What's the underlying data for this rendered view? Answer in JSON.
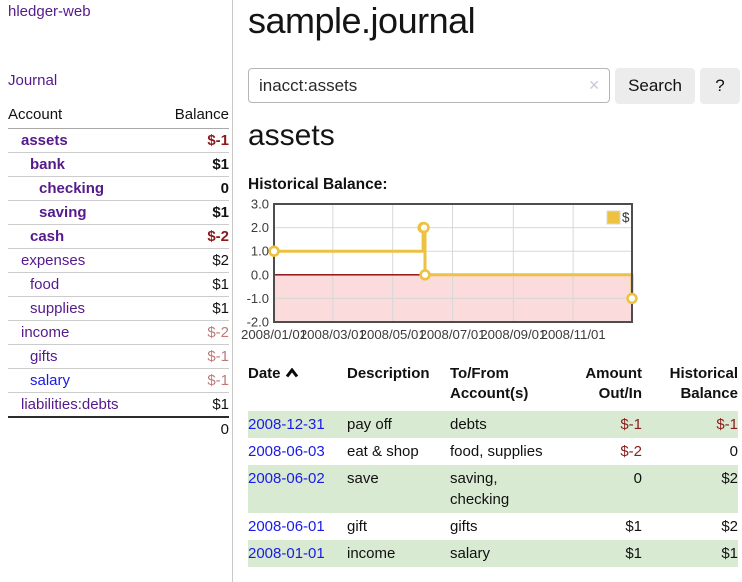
{
  "app": {
    "title": "hledger-web"
  },
  "nav": {
    "journal": "Journal"
  },
  "sidebar": {
    "columns": {
      "account": "Account",
      "balance": "Balance"
    },
    "accounts": [
      {
        "name": "assets",
        "balance": "$-1",
        "depth": 1,
        "bold": true,
        "balance_style": "neg-strong",
        "link": "visited"
      },
      {
        "name": "bank",
        "balance": "$1",
        "depth": 2,
        "bold": true,
        "balance_style": "pos",
        "link": "visited"
      },
      {
        "name": "checking",
        "balance": "0",
        "depth": 3,
        "bold": true,
        "balance_style": "pos",
        "link": "visited"
      },
      {
        "name": "saving",
        "balance": "$1",
        "depth": 3,
        "bold": true,
        "balance_style": "pos",
        "link": "visited"
      },
      {
        "name": "cash",
        "balance": "$-2",
        "depth": 2,
        "bold": true,
        "balance_style": "neg-strong",
        "link": "visited"
      },
      {
        "name": "expenses",
        "balance": "$2",
        "depth": 1,
        "bold": false,
        "balance_style": "pos",
        "link": "visited"
      },
      {
        "name": "food",
        "balance": "$1",
        "depth": 2,
        "bold": false,
        "balance_style": "pos",
        "link": "visited"
      },
      {
        "name": "supplies",
        "balance": "$1",
        "depth": 2,
        "bold": false,
        "balance_style": "pos",
        "link": "visited"
      },
      {
        "name": "income",
        "balance": "$-2",
        "depth": 1,
        "bold": false,
        "balance_style": "neg-soft",
        "link": "visited"
      },
      {
        "name": "gifts",
        "balance": "$-1",
        "depth": 2,
        "bold": false,
        "balance_style": "neg-soft",
        "link": "visited"
      },
      {
        "name": "salary",
        "balance": "$-1",
        "depth": 2,
        "bold": false,
        "balance_style": "neg-soft",
        "link": "unvisited"
      },
      {
        "name": "liabilities:debts",
        "balance": "$1",
        "depth": 1,
        "bold": false,
        "balance_style": "pos",
        "link": "visited"
      }
    ],
    "total": "0"
  },
  "main": {
    "title": "sample.journal",
    "search": {
      "value": "inacct:assets",
      "clear_icon": "✕",
      "search_button": "Search",
      "help_button": "?"
    },
    "account_heading": "assets",
    "section_heading": "Historical Balance:"
  },
  "chart_data": {
    "type": "line",
    "step": true,
    "title": "Historical Balance:",
    "x": [
      "2008-01-01",
      "2008-06-01",
      "2008-06-02",
      "2008-06-03",
      "2008-12-31"
    ],
    "series": [
      {
        "name": "$",
        "values": [
          1,
          2,
          2,
          0,
          -1
        ]
      }
    ],
    "xrange": [
      "2008-01-01",
      "2008-12-31"
    ],
    "ylim": [
      -2,
      3
    ],
    "yticks": [
      "3.0",
      "2.0",
      "1.0",
      "0.0",
      "-1.0",
      "-2.0"
    ],
    "xticks": [
      "2008/01/01",
      "2008/03/01",
      "2008/05/01",
      "2008/07/01",
      "2008/09/01",
      "2008/11/01"
    ],
    "legend_position": "top-right",
    "grid": true,
    "negative_region_highlighted": true
  },
  "register": {
    "columns": [
      {
        "label": "Date",
        "sortable": true,
        "sort": "asc",
        "align": "left"
      },
      {
        "label": "Description",
        "align": "left"
      },
      {
        "label": "To/From Account(s)",
        "align": "left"
      },
      {
        "label": "Amount Out/In",
        "align": "right"
      },
      {
        "label": "Historical Balance",
        "align": "right"
      }
    ],
    "rows": [
      {
        "date": "2008-12-31",
        "description": "pay off",
        "accounts": "debts",
        "amount": "$-1",
        "balance": "$-1",
        "amount_negative": true,
        "balance_negative": true
      },
      {
        "date": "2008-06-03",
        "description": "eat & shop",
        "accounts": "food, supplies",
        "amount": "$-2",
        "balance": "0",
        "amount_negative": true,
        "balance_negative": false
      },
      {
        "date": "2008-06-02",
        "description": "save",
        "accounts": "saving, checking",
        "amount": "0",
        "balance": "$2",
        "amount_negative": false,
        "balance_negative": false
      },
      {
        "date": "2008-06-01",
        "description": "gift",
        "accounts": "gifts",
        "amount": "$1",
        "balance": "$2",
        "amount_negative": false,
        "balance_negative": false
      },
      {
        "date": "2008-01-01",
        "description": "income",
        "accounts": "salary",
        "amount": "$1",
        "balance": "$1",
        "amount_negative": false,
        "balance_negative": false
      }
    ]
  },
  "colors": {
    "link_visited": "#551a8b",
    "link_unvisited": "#1a1ae8",
    "negative_strong": "#8b1a1a",
    "negative_soft": "#bf7a7a",
    "row_stripe": "#d9ead3",
    "chart_line": "#edc240",
    "chart_negative_fill": "#fbdbdb",
    "chart_zero_line": "#8b0000",
    "chart_border": "#4d4d4d",
    "button_bg": "#ececec"
  }
}
